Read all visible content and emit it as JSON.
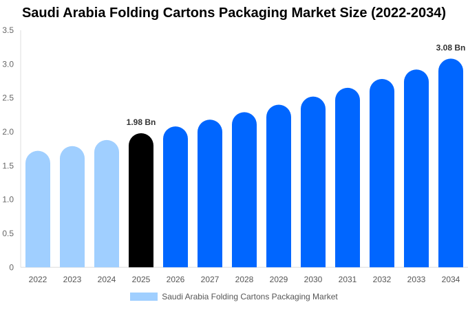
{
  "chart_data": {
    "type": "bar",
    "title": "Saudi Arabia Folding Cartons Packaging Market Size (2022-2034)",
    "categories": [
      "2022",
      "2023",
      "2024",
      "2025",
      "2026",
      "2027",
      "2028",
      "2029",
      "2030",
      "2031",
      "2032",
      "2033",
      "2034"
    ],
    "series": [
      {
        "name": "Saudi Arabia Folding Cartons Packaging Market",
        "values": [
          1.72,
          1.79,
          1.88,
          1.98,
          2.08,
          2.18,
          2.29,
          2.4,
          2.52,
          2.65,
          2.78,
          2.92,
          3.08
        ]
      }
    ],
    "data_labels": {
      "2025": "1.98 Bn",
      "2034": "3.08 Bn"
    },
    "ylim": [
      0,
      3.5
    ],
    "yticks": [
      "0",
      "0.5",
      "1.0",
      "1.5",
      "2.0",
      "2.5",
      "3.0",
      "3.5"
    ],
    "grid": false,
    "legend": "bottom",
    "colors": {
      "historical": "#a0cfff",
      "base_year": "#000000",
      "forecast": "#0066ff"
    }
  }
}
